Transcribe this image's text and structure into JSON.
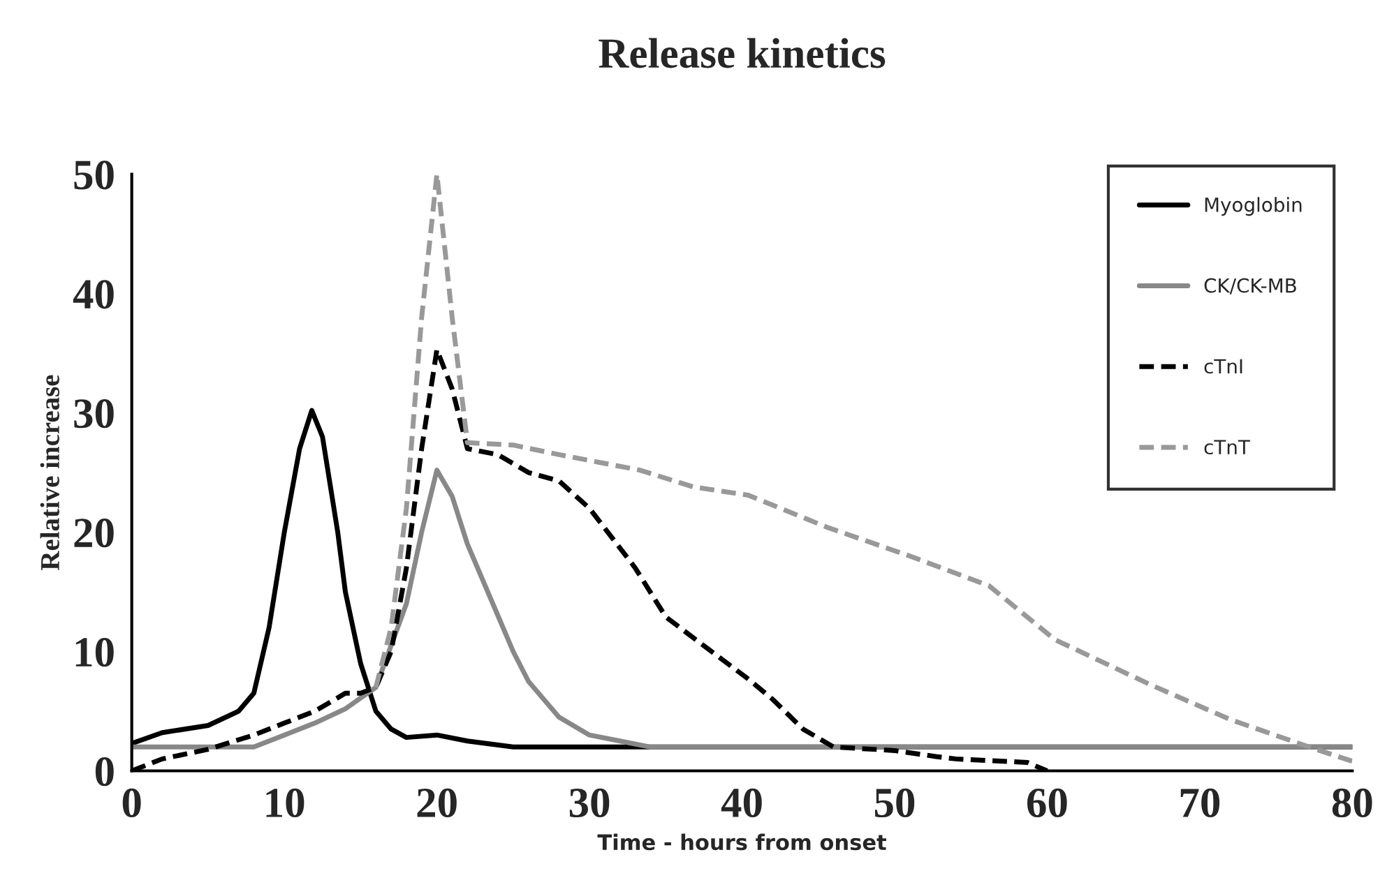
{
  "chart_data": {
    "type": "line",
    "title": "Release kinetics",
    "xlabel": "Time - hours from onset",
    "ylabel": "Relative increase",
    "xlim": [
      0,
      80
    ],
    "xticks": [
      0,
      10,
      20,
      30,
      40,
      50,
      60,
      70,
      80
    ],
    "ylim": [
      0,
      50
    ],
    "yticks": [
      0,
      10,
      20,
      30,
      40,
      50
    ],
    "grid": false,
    "legend": "top right",
    "series": [
      {
        "name": "Myoglobin",
        "color": "#000000",
        "line_style": "solid",
        "x": [
          0,
          2,
          5,
          7,
          8,
          9,
          10,
          11,
          11.8,
          12.5,
          13.5,
          14,
          15,
          16,
          17,
          18,
          20,
          22,
          25,
          80
        ],
        "values": [
          2.3,
          3.2,
          3.8,
          5,
          6.5,
          12,
          20,
          27,
          30.2,
          28,
          20,
          15,
          9,
          5,
          3.5,
          2.8,
          3,
          2.5,
          2,
          2
        ]
      },
      {
        "name": "CK/CK-MB",
        "color": "#888888",
        "line_style": "solid",
        "x": [
          0,
          8,
          10,
          12,
          14,
          16,
          18,
          19,
          20,
          21,
          22,
          24,
          25,
          26,
          28,
          30,
          32,
          34,
          80
        ],
        "values": [
          2,
          2,
          3,
          4,
          5.2,
          7,
          14,
          20,
          25.2,
          23,
          19,
          13,
          10,
          7.5,
          4.5,
          3,
          2.5,
          2,
          2
        ]
      },
      {
        "name": "cTnI",
        "color": "#000000",
        "line_style": "dashed",
        "x": [
          0,
          2,
          5,
          8,
          10,
          12,
          14,
          15,
          16,
          17,
          18,
          19,
          20,
          21,
          22,
          24,
          26,
          28,
          30,
          33,
          35,
          38,
          40.4,
          42,
          44,
          46,
          50,
          52.7,
          54,
          58.7,
          60
        ],
        "values": [
          0,
          1,
          1.8,
          3,
          4,
          5,
          6.5,
          6.5,
          7,
          10,
          17,
          27,
          35.3,
          32,
          27,
          26.5,
          25,
          24.3,
          22,
          17,
          12.9,
          10,
          7.7,
          6,
          3.5,
          2,
          1.7,
          1.2,
          1,
          0.7,
          0
        ]
      },
      {
        "name": "cTnT",
        "color": "#999999",
        "line_style": "dashed",
        "x": [
          16,
          17,
          18,
          19,
          20,
          21,
          22,
          25,
          28,
          33.3,
          36.8,
          40.4,
          45.6,
          51,
          56.2,
          60.5,
          66.8,
          72,
          77.4,
          80
        ],
        "values": [
          7,
          12,
          22,
          38,
          50,
          38,
          27.5,
          27.3,
          26.5,
          25.2,
          23.8,
          23.1,
          20.4,
          18,
          15.5,
          11,
          7.2,
          4.3,
          1.9,
          0.8
        ]
      }
    ]
  }
}
